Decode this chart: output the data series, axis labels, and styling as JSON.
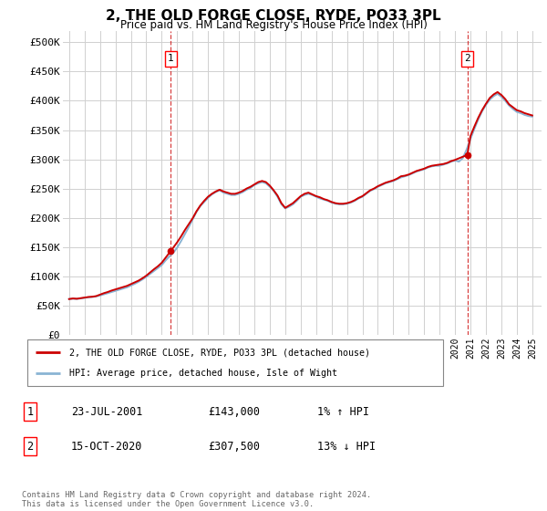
{
  "title": "2, THE OLD FORGE CLOSE, RYDE, PO33 3PL",
  "subtitle": "Price paid vs. HM Land Registry's House Price Index (HPI)",
  "ylabel_ticks": [
    "£0",
    "£50K",
    "£100K",
    "£150K",
    "£200K",
    "£250K",
    "£300K",
    "£350K",
    "£400K",
    "£450K",
    "£500K"
  ],
  "ytick_values": [
    0,
    50000,
    100000,
    150000,
    200000,
    250000,
    300000,
    350000,
    400000,
    450000,
    500000
  ],
  "ylim": [
    0,
    520000
  ],
  "xlim_start": 1994.6,
  "xlim_end": 2025.6,
  "background_color": "#ffffff",
  "grid_color": "#d0d0d0",
  "hpi_color": "#8ab4d4",
  "price_color": "#cc0000",
  "transaction1_date": "23-JUL-2001",
  "transaction1_price": 143000,
  "transaction1_price_str": "£143,000",
  "transaction1_hpi_diff": "1% ↑ HPI",
  "transaction2_date": "15-OCT-2020",
  "transaction2_price": 307500,
  "transaction2_price_str": "£307,500",
  "transaction2_hpi_diff": "13% ↓ HPI",
  "legend_line1": "2, THE OLD FORGE CLOSE, RYDE, PO33 3PL (detached house)",
  "legend_line2": "HPI: Average price, detached house, Isle of Wight",
  "footer": "Contains HM Land Registry data © Crown copyright and database right 2024.\nThis data is licensed under the Open Government Licence v3.0.",
  "hpi_data": [
    [
      1995.0,
      61000
    ],
    [
      1995.25,
      61500
    ],
    [
      1995.5,
      61200
    ],
    [
      1995.75,
      62000
    ],
    [
      1996.0,
      63000
    ],
    [
      1996.25,
      64000
    ],
    [
      1996.5,
      64500
    ],
    [
      1996.75,
      65500
    ],
    [
      1997.0,
      67000
    ],
    [
      1997.25,
      69000
    ],
    [
      1997.5,
      71000
    ],
    [
      1997.75,
      73000
    ],
    [
      1998.0,
      75000
    ],
    [
      1998.25,
      77000
    ],
    [
      1998.5,
      79000
    ],
    [
      1998.75,
      81000
    ],
    [
      1999.0,
      84000
    ],
    [
      1999.25,
      87000
    ],
    [
      1999.5,
      90500
    ],
    [
      1999.75,
      94500
    ],
    [
      2000.0,
      99000
    ],
    [
      2000.25,
      104000
    ],
    [
      2000.5,
      109000
    ],
    [
      2000.75,
      114000
    ],
    [
      2001.0,
      119000
    ],
    [
      2001.25,
      127000
    ],
    [
      2001.5,
      134000
    ],
    [
      2001.75,
      140000
    ],
    [
      2002.0,
      149000
    ],
    [
      2002.25,
      160000
    ],
    [
      2002.5,
      172000
    ],
    [
      2002.75,
      184000
    ],
    [
      2003.0,
      197000
    ],
    [
      2003.25,
      210000
    ],
    [
      2003.5,
      220000
    ],
    [
      2003.75,
      227000
    ],
    [
      2004.0,
      234000
    ],
    [
      2004.25,
      240000
    ],
    [
      2004.5,
      244000
    ],
    [
      2004.75,
      247000
    ],
    [
      2005.0,
      243000
    ],
    [
      2005.25,
      241000
    ],
    [
      2005.5,
      239000
    ],
    [
      2005.75,
      239000
    ],
    [
      2006.0,
      241000
    ],
    [
      2006.25,
      244000
    ],
    [
      2006.5,
      248000
    ],
    [
      2006.75,
      251000
    ],
    [
      2007.0,
      256000
    ],
    [
      2007.25,
      259000
    ],
    [
      2007.5,
      261000
    ],
    [
      2007.75,
      259000
    ],
    [
      2008.0,
      253000
    ],
    [
      2008.25,
      246000
    ],
    [
      2008.5,
      236000
    ],
    [
      2008.75,
      223000
    ],
    [
      2009.0,
      216000
    ],
    [
      2009.25,
      219000
    ],
    [
      2009.5,
      223000
    ],
    [
      2009.75,
      229000
    ],
    [
      2010.0,
      236000
    ],
    [
      2010.25,
      239000
    ],
    [
      2010.5,
      241000
    ],
    [
      2010.75,
      239000
    ],
    [
      2011.0,
      236000
    ],
    [
      2011.25,
      233000
    ],
    [
      2011.5,
      231000
    ],
    [
      2011.75,
      229000
    ],
    [
      2012.0,
      226000
    ],
    [
      2012.25,
      224000
    ],
    [
      2012.5,
      223000
    ],
    [
      2012.75,
      223000
    ],
    [
      2013.0,
      224000
    ],
    [
      2013.25,
      226000
    ],
    [
      2013.5,
      229000
    ],
    [
      2013.75,
      233000
    ],
    [
      2014.0,
      236000
    ],
    [
      2014.25,
      241000
    ],
    [
      2014.5,
      246000
    ],
    [
      2014.75,
      249000
    ],
    [
      2015.0,
      253000
    ],
    [
      2015.25,
      256000
    ],
    [
      2015.5,
      259000
    ],
    [
      2015.75,
      261000
    ],
    [
      2016.0,
      263000
    ],
    [
      2016.25,
      266000
    ],
    [
      2016.5,
      269000
    ],
    [
      2016.75,
      271000
    ],
    [
      2017.0,
      273000
    ],
    [
      2017.25,
      276000
    ],
    [
      2017.5,
      279000
    ],
    [
      2017.75,
      281000
    ],
    [
      2018.0,
      283000
    ],
    [
      2018.25,
      286000
    ],
    [
      2018.5,
      288000
    ],
    [
      2018.75,
      289000
    ],
    [
      2019.0,
      289000
    ],
    [
      2019.25,
      291000
    ],
    [
      2019.5,
      293000
    ],
    [
      2019.75,
      296000
    ],
    [
      2020.0,
      298000
    ],
    [
      2020.25,
      296000
    ],
    [
      2020.5,
      302000
    ],
    [
      2020.75,
      317000
    ],
    [
      2021.0,
      335000
    ],
    [
      2021.25,
      352000
    ],
    [
      2021.5,
      368000
    ],
    [
      2021.75,
      382000
    ],
    [
      2022.0,
      393000
    ],
    [
      2022.25,
      402000
    ],
    [
      2022.5,
      408000
    ],
    [
      2022.75,
      412000
    ],
    [
      2023.0,
      407000
    ],
    [
      2023.25,
      400000
    ],
    [
      2023.5,
      392000
    ],
    [
      2023.75,
      386000
    ],
    [
      2024.0,
      381000
    ],
    [
      2024.25,
      379000
    ],
    [
      2024.5,
      376000
    ],
    [
      2024.75,
      374000
    ],
    [
      2025.0,
      373000
    ]
  ],
  "price_data": [
    [
      1995.0,
      61000
    ],
    [
      1995.25,
      62000
    ],
    [
      1995.5,
      61500
    ],
    [
      1995.75,
      62500
    ],
    [
      1996.0,
      63500
    ],
    [
      1996.25,
      64500
    ],
    [
      1996.5,
      65000
    ],
    [
      1996.75,
      66000
    ],
    [
      1997.0,
      68500
    ],
    [
      1997.25,
      71000
    ],
    [
      1997.5,
      73000
    ],
    [
      1997.75,
      75500
    ],
    [
      1998.0,
      77500
    ],
    [
      1998.25,
      79500
    ],
    [
      1998.5,
      81500
    ],
    [
      1998.75,
      83500
    ],
    [
      1999.0,
      86500
    ],
    [
      1999.25,
      89500
    ],
    [
      1999.5,
      92500
    ],
    [
      1999.75,
      96500
    ],
    [
      2000.0,
      101000
    ],
    [
      2000.25,
      106500
    ],
    [
      2000.5,
      112000
    ],
    [
      2000.75,
      117000
    ],
    [
      2001.0,
      123000
    ],
    [
      2001.58,
      143000
    ],
    [
      2001.75,
      149000
    ],
    [
      2002.0,
      158000
    ],
    [
      2002.25,
      168000
    ],
    [
      2002.5,
      179000
    ],
    [
      2002.75,
      189000
    ],
    [
      2003.0,
      199000
    ],
    [
      2003.25,
      211000
    ],
    [
      2003.5,
      221000
    ],
    [
      2003.75,
      229000
    ],
    [
      2004.0,
      236000
    ],
    [
      2004.25,
      241000
    ],
    [
      2004.5,
      245000
    ],
    [
      2004.75,
      248000
    ],
    [
      2005.0,
      245000
    ],
    [
      2005.25,
      243000
    ],
    [
      2005.5,
      241000
    ],
    [
      2005.75,
      241000
    ],
    [
      2006.0,
      243000
    ],
    [
      2006.25,
      246000
    ],
    [
      2006.5,
      250000
    ],
    [
      2006.75,
      253000
    ],
    [
      2007.0,
      257000
    ],
    [
      2007.25,
      261000
    ],
    [
      2007.5,
      263000
    ],
    [
      2007.75,
      261000
    ],
    [
      2008.0,
      255000
    ],
    [
      2008.25,
      247000
    ],
    [
      2008.5,
      238000
    ],
    [
      2008.75,
      225000
    ],
    [
      2009.0,
      217000
    ],
    [
      2009.25,
      221000
    ],
    [
      2009.5,
      225000
    ],
    [
      2009.75,
      231000
    ],
    [
      2010.0,
      237000
    ],
    [
      2010.25,
      241000
    ],
    [
      2010.5,
      243000
    ],
    [
      2010.75,
      240000
    ],
    [
      2011.0,
      237000
    ],
    [
      2011.25,
      235000
    ],
    [
      2011.5,
      232000
    ],
    [
      2011.75,
      230000
    ],
    [
      2012.0,
      227000
    ],
    [
      2012.25,
      225000
    ],
    [
      2012.5,
      224000
    ],
    [
      2012.75,
      224000
    ],
    [
      2013.0,
      225000
    ],
    [
      2013.25,
      227000
    ],
    [
      2013.5,
      230000
    ],
    [
      2013.75,
      234000
    ],
    [
      2014.0,
      237000
    ],
    [
      2014.25,
      242000
    ],
    [
      2014.5,
      247000
    ],
    [
      2014.75,
      250000
    ],
    [
      2015.0,
      254000
    ],
    [
      2015.25,
      257000
    ],
    [
      2015.5,
      260000
    ],
    [
      2015.75,
      262000
    ],
    [
      2016.0,
      264000
    ],
    [
      2016.25,
      267000
    ],
    [
      2016.5,
      271000
    ],
    [
      2016.75,
      272000
    ],
    [
      2017.0,
      274000
    ],
    [
      2017.25,
      277000
    ],
    [
      2017.5,
      280000
    ],
    [
      2017.75,
      282000
    ],
    [
      2018.0,
      284000
    ],
    [
      2018.25,
      287000
    ],
    [
      2018.5,
      289000
    ],
    [
      2018.75,
      290000
    ],
    [
      2019.0,
      291000
    ],
    [
      2019.25,
      292000
    ],
    [
      2019.5,
      294000
    ],
    [
      2019.75,
      297000
    ],
    [
      2020.0,
      299000
    ],
    [
      2020.79,
      307500
    ],
    [
      2021.0,
      340000
    ],
    [
      2021.25,
      356000
    ],
    [
      2021.5,
      371000
    ],
    [
      2021.75,
      384000
    ],
    [
      2022.0,
      395000
    ],
    [
      2022.25,
      405000
    ],
    [
      2022.5,
      411000
    ],
    [
      2022.75,
      415000
    ],
    [
      2023.0,
      410000
    ],
    [
      2023.25,
      403000
    ],
    [
      2023.5,
      394000
    ],
    [
      2023.75,
      389000
    ],
    [
      2024.0,
      384000
    ],
    [
      2024.25,
      382000
    ],
    [
      2024.5,
      379000
    ],
    [
      2024.75,
      377000
    ],
    [
      2025.0,
      375000
    ]
  ],
  "marker1_x": 2001.58,
  "marker1_y": 143000,
  "marker2_x": 2020.79,
  "marker2_y": 307500
}
